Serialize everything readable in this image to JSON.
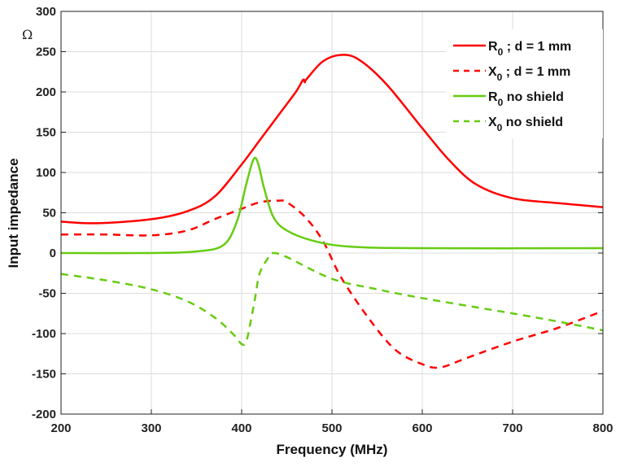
{
  "chart_data": {
    "type": "line",
    "title": "",
    "xlabel": "Frequency (MHz)",
    "ylabel": "Input impedance",
    "unit_label": "Ω",
    "xlim": [
      200,
      800
    ],
    "ylim": [
      -200,
      300
    ],
    "xticks": [
      200,
      300,
      400,
      500,
      600,
      700,
      800
    ],
    "yticks": [
      -200,
      -150,
      -100,
      -50,
      0,
      50,
      100,
      150,
      200,
      250,
      300
    ],
    "grid": true,
    "legend_position": "top-right",
    "series": [
      {
        "name_main": "R",
        "name_sub": "0",
        "name_rest": " ; d = 1 mm",
        "color": "#ff0000",
        "dash": "solid",
        "x": [
          200,
          240,
          300,
          340,
          370,
          400,
          420,
          440,
          460,
          468,
          470,
          472,
          490,
          510,
          530,
          560,
          600,
          630,
          660,
          700,
          750,
          800
        ],
        "y": [
          39,
          37,
          42,
          52,
          70,
          110,
          140,
          170,
          200,
          215,
          212,
          216,
          238,
          246,
          240,
          210,
          155,
          115,
          85,
          68,
          62,
          57
        ]
      },
      {
        "name_main": "X",
        "name_sub": "0",
        "name_rest": " ; d = 1 mm",
        "color": "#ff0000",
        "dash": "dashed",
        "x": [
          200,
          250,
          300,
          340,
          370,
          400,
          420,
          440,
          450,
          470,
          490,
          510,
          540,
          570,
          600,
          620,
          650,
          700,
          750,
          800
        ],
        "y": [
          23,
          23,
          22,
          28,
          42,
          55,
          63,
          65,
          63,
          45,
          15,
          -30,
          -80,
          -120,
          -138,
          -142,
          -130,
          -110,
          -93,
          -72
        ]
      },
      {
        "name_main": "R",
        "name_sub": "0",
        "name_rest": " no shield",
        "color": "#66cc11",
        "dash": "solid",
        "x": [
          200,
          300,
          350,
          380,
          395,
          405,
          413,
          418,
          425,
          435,
          450,
          480,
          520,
          600,
          800
        ],
        "y": [
          0,
          0,
          2,
          10,
          40,
          85,
          116,
          112,
          80,
          45,
          28,
          15,
          8,
          6,
          6
        ]
      },
      {
        "name_main": "X",
        "name_sub": "0",
        "name_rest": " no shield",
        "color": "#66cc11",
        "dash": "dashed",
        "x": [
          200,
          250,
          300,
          340,
          370,
          390,
          400,
          405,
          410,
          415,
          420,
          430,
          435,
          450,
          500,
          550,
          600,
          700,
          750,
          800
        ],
        "y": [
          -26,
          -34,
          -45,
          -60,
          -80,
          -100,
          -113,
          -110,
          -85,
          -55,
          -25,
          -5,
          0,
          -5,
          -32,
          -45,
          -56,
          -75,
          -85,
          -96
        ]
      }
    ]
  }
}
